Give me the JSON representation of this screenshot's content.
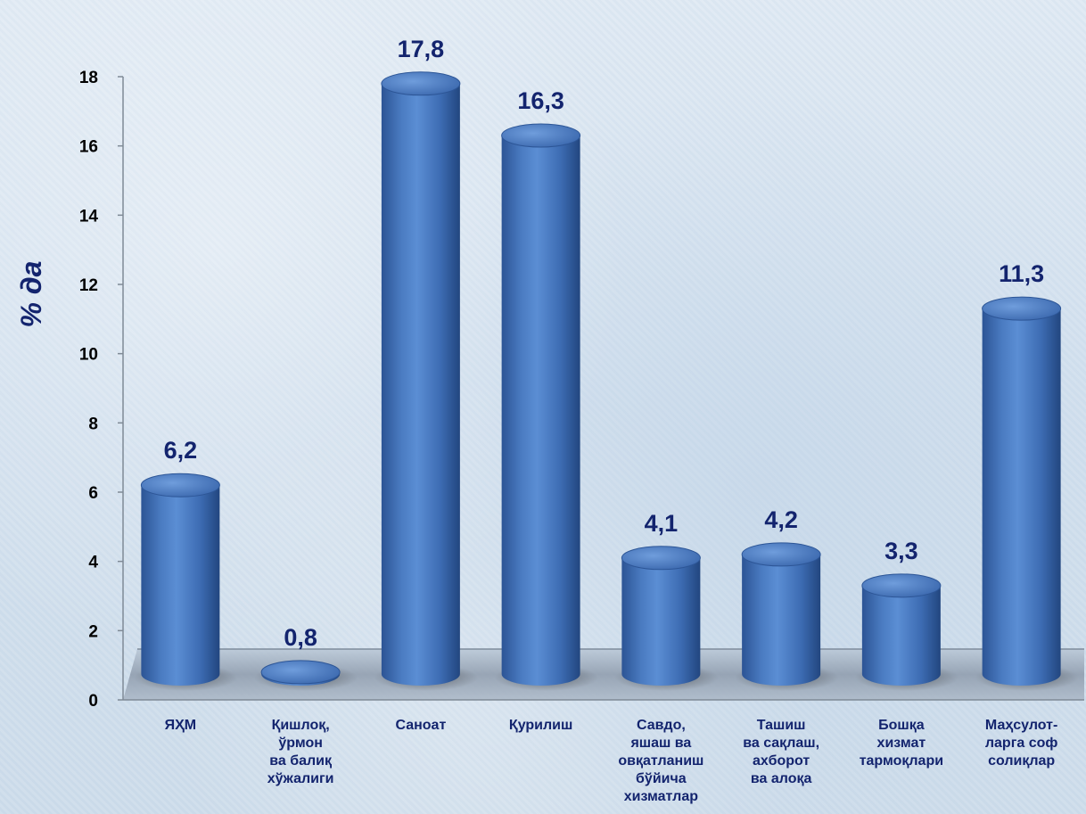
{
  "chart_data": {
    "type": "bar",
    "title": "",
    "xlabel": "",
    "ylabel": "% да",
    "ylim": [
      0,
      18
    ],
    "yticks": [
      "0",
      "2",
      "4",
      "6",
      "8",
      "10",
      "12",
      "14",
      "16",
      "18"
    ],
    "grid": false,
    "legend": "none",
    "bar_color": "#3f6fb4",
    "label_color": "#13246e",
    "categories": [
      [
        "ЯҲМ"
      ],
      [
        "Қишлоқ,",
        "ўрмон",
        "ва балиқ",
        "хўжалиги"
      ],
      [
        "Саноат"
      ],
      [
        "Қурилиш"
      ],
      [
        "Савдо,",
        "яшаш ва",
        "овқатланиш",
        "бўйича",
        "хизматлар"
      ],
      [
        "Ташиш",
        "ва сақлаш,",
        "ахборот",
        "ва алоқа"
      ],
      [
        "Бошқа",
        "хизмат",
        "тармоқлари"
      ],
      [
        "Маҳсулот-",
        "ларга соф",
        "солиқлар"
      ]
    ],
    "values": [
      6.2,
      0.8,
      17.8,
      16.3,
      4.1,
      4.2,
      3.3,
      11.3
    ],
    "data_labels": [
      "6,2",
      "0,8",
      "17,8",
      "16,3",
      "4,1",
      "4,2",
      "3,3",
      "11,3"
    ]
  }
}
